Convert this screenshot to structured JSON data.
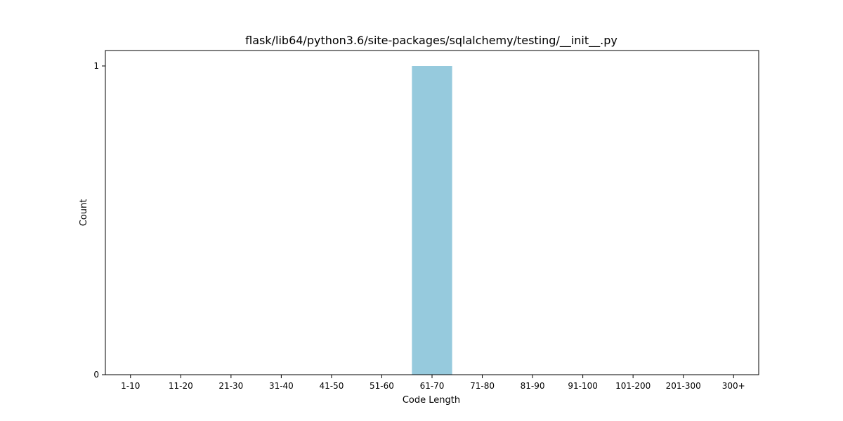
{
  "chart_data": {
    "type": "bar",
    "title": "flask/lib64/python3.6/site-packages/sqlalchemy/testing/__init__.py",
    "xlabel": "Code Length",
    "ylabel": "Count",
    "categories": [
      "1-10",
      "11-20",
      "21-30",
      "31-40",
      "41-50",
      "51-60",
      "61-70",
      "71-80",
      "81-90",
      "91-100",
      "101-200",
      "201-300",
      "300+"
    ],
    "values": [
      0,
      0,
      0,
      0,
      0,
      0,
      1,
      0,
      0,
      0,
      0,
      0,
      0
    ],
    "ylim": [
      0,
      1.05
    ],
    "yticks": [
      "0",
      "1"
    ],
    "grid": false,
    "bar_color": "#96cadd"
  }
}
